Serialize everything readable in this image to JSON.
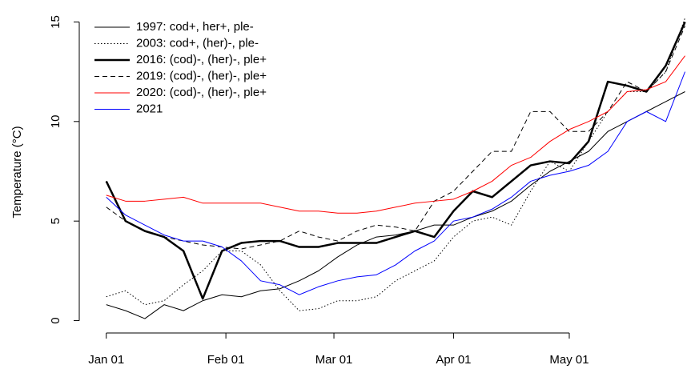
{
  "chart_data": {
    "type": "line",
    "y_label": "Temperature (°C)",
    "x": [
      0,
      5,
      10,
      15,
      20,
      25,
      30,
      35,
      40,
      45,
      50,
      55,
      60,
      65,
      70,
      75,
      80,
      85,
      90,
      95,
      100,
      105,
      110,
      115,
      120,
      125,
      130,
      135,
      140,
      145,
      150
    ],
    "xlim": [
      -7,
      153
    ],
    "xticks": [
      {
        "value": 0,
        "label": "Jan 01"
      },
      {
        "value": 31,
        "label": "Feb 01"
      },
      {
        "value": 59,
        "label": "Mar 01"
      },
      {
        "value": 90,
        "label": "Apr 01"
      },
      {
        "value": 120,
        "label": "May 01"
      }
    ],
    "ylim": [
      -0.5,
      15.5
    ],
    "yticks": [
      0,
      5,
      10,
      15
    ],
    "legend": "top-left",
    "series": [
      {
        "name": "1997: cod+, her+, ple-",
        "color": "#000000",
        "dash": "solid",
        "width": 1,
        "label_color": "#000000",
        "values": [
          0.8,
          0.5,
          0.1,
          0.8,
          0.5,
          1.0,
          1.3,
          1.2,
          1.5,
          1.6,
          2.0,
          2.5,
          3.2,
          3.8,
          4.2,
          4.3,
          4.5,
          4.8,
          4.8,
          5.2,
          5.5,
          6.0,
          6.8,
          7.5,
          8.0,
          8.5,
          9.5,
          10.0,
          10.5,
          11.0,
          11.5
        ]
      },
      {
        "name": "2003: cod+, (her)-, ple-",
        "color": "#000000",
        "dash": "dotted",
        "width": 1,
        "label_color": "#000000",
        "values": [
          1.2,
          1.5,
          0.8,
          1.0,
          1.8,
          2.5,
          3.5,
          3.5,
          2.8,
          1.5,
          0.5,
          0.6,
          1.0,
          1.0,
          1.2,
          2.0,
          2.5,
          3.0,
          4.2,
          5.0,
          5.2,
          4.8,
          6.5,
          8.0,
          7.5,
          9.0,
          10.5,
          11.5,
          11.5,
          12.5,
          15.2
        ]
      },
      {
        "name": "2016: (cod)-, (her)-, ple+",
        "color": "#000000",
        "dash": "solid",
        "width": 2.5,
        "label_color": "#000000",
        "values": [
          7.0,
          5.0,
          4.5,
          4.2,
          3.5,
          1.1,
          3.5,
          3.9,
          4.0,
          4.0,
          3.7,
          3.7,
          3.9,
          3.9,
          3.9,
          4.2,
          4.5,
          4.2,
          5.5,
          6.5,
          6.2,
          7.0,
          7.8,
          8.0,
          7.9,
          9.0,
          12.0,
          11.8,
          11.5,
          12.8,
          15.0
        ]
      },
      {
        "name": "2019: (cod)-, (her)-, ple+",
        "color": "#000000",
        "dash": "dashed",
        "width": 1,
        "label_color": "#000000",
        "values": [
          5.7,
          5.0,
          4.5,
          4.2,
          4.0,
          3.8,
          3.7,
          3.6,
          3.8,
          4.0,
          4.5,
          4.2,
          4.0,
          4.5,
          4.8,
          4.7,
          4.5,
          6.0,
          6.5,
          7.5,
          8.5,
          8.5,
          10.5,
          10.5,
          9.5,
          9.5,
          10.5,
          12.0,
          11.5,
          12.5,
          14.8
        ]
      },
      {
        "name": "2020: (cod)-, (her)-, ple+",
        "color": "#ff0000",
        "dash": "solid",
        "width": 1,
        "label_color": "#000000",
        "values": [
          6.3,
          6.0,
          6.0,
          6.1,
          6.2,
          5.9,
          5.9,
          5.9,
          5.9,
          5.7,
          5.5,
          5.5,
          5.4,
          5.4,
          5.5,
          5.7,
          5.9,
          6.0,
          6.1,
          6.5,
          7.0,
          7.8,
          8.2,
          9.0,
          9.6,
          10.0,
          10.5,
          11.5,
          11.6,
          12.0,
          13.3
        ]
      },
      {
        "name": "2021",
        "color": "#0000ff",
        "dash": "solid",
        "width": 1,
        "label_color": "#0000ff",
        "values": [
          6.2,
          5.3,
          4.8,
          4.3,
          4.0,
          4.0,
          3.7,
          3.0,
          2.0,
          1.8,
          1.3,
          1.7,
          2.0,
          2.2,
          2.3,
          2.8,
          3.5,
          4.0,
          5.0,
          5.2,
          5.6,
          6.2,
          7.0,
          7.3,
          7.5,
          7.8,
          8.5,
          10.0,
          10.5,
          10.0,
          12.5
        ]
      }
    ]
  }
}
